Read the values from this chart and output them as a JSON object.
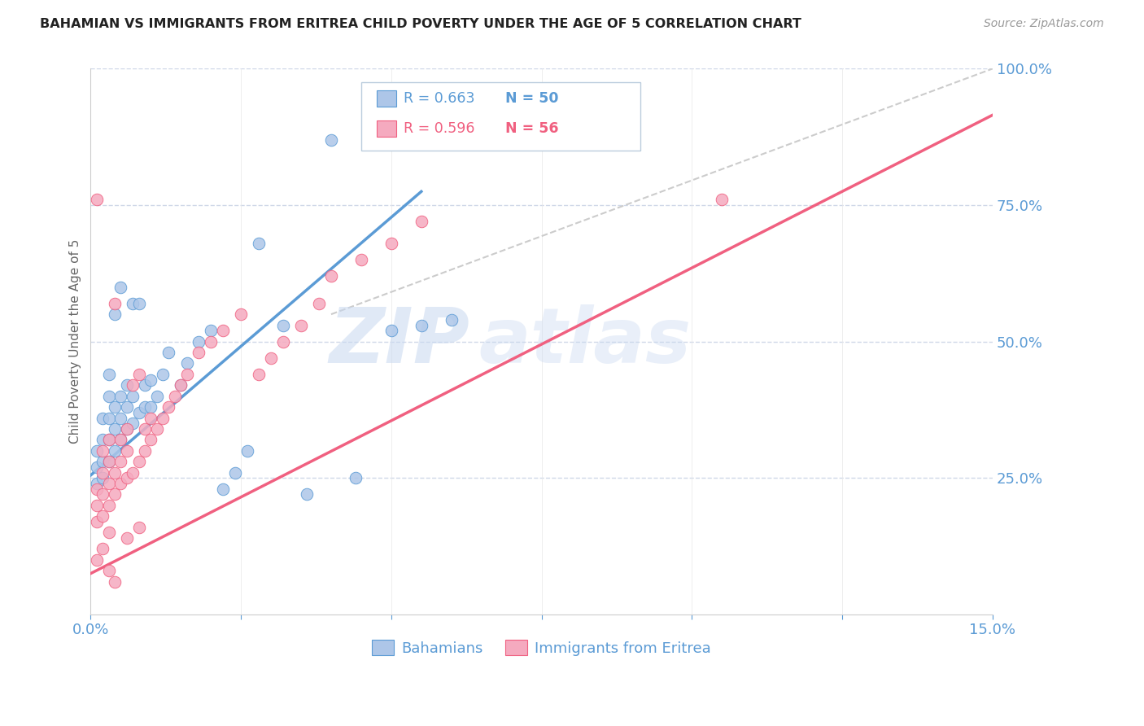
{
  "title": "BAHAMIAN VS IMMIGRANTS FROM ERITREA CHILD POVERTY UNDER THE AGE OF 5 CORRELATION CHART",
  "source": "Source: ZipAtlas.com",
  "ylabel": "Child Poverty Under the Age of 5",
  "xmin": 0.0,
  "xmax": 0.15,
  "ymin": 0.0,
  "ymax": 1.0,
  "xticks": [
    0.0,
    0.025,
    0.05,
    0.075,
    0.1,
    0.125,
    0.15
  ],
  "yticks": [
    0.0,
    0.25,
    0.5,
    0.75,
    1.0
  ],
  "blue_R": 0.663,
  "blue_N": 50,
  "pink_R": 0.596,
  "pink_N": 56,
  "blue_color": "#adc6e8",
  "pink_color": "#f5aabf",
  "blue_line_color": "#5b9bd5",
  "pink_line_color": "#f06080",
  "axis_color": "#5b9bd5",
  "grid_color": "#d0d8e8",
  "background_color": "#ffffff",
  "blue_scatter_x": [
    0.001,
    0.001,
    0.001,
    0.002,
    0.002,
    0.002,
    0.002,
    0.003,
    0.003,
    0.003,
    0.003,
    0.003,
    0.004,
    0.004,
    0.004,
    0.004,
    0.005,
    0.005,
    0.005,
    0.005,
    0.006,
    0.006,
    0.006,
    0.007,
    0.007,
    0.007,
    0.008,
    0.008,
    0.009,
    0.009,
    0.01,
    0.01,
    0.011,
    0.012,
    0.013,
    0.015,
    0.016,
    0.018,
    0.02,
    0.022,
    0.024,
    0.026,
    0.028,
    0.032,
    0.036,
    0.04,
    0.044,
    0.05,
    0.055,
    0.06
  ],
  "blue_scatter_y": [
    0.24,
    0.27,
    0.3,
    0.25,
    0.28,
    0.32,
    0.36,
    0.28,
    0.32,
    0.36,
    0.4,
    0.44,
    0.3,
    0.34,
    0.38,
    0.55,
    0.32,
    0.36,
    0.4,
    0.6,
    0.34,
    0.38,
    0.42,
    0.35,
    0.4,
    0.57,
    0.37,
    0.57,
    0.38,
    0.42,
    0.38,
    0.43,
    0.4,
    0.44,
    0.48,
    0.42,
    0.46,
    0.5,
    0.52,
    0.23,
    0.26,
    0.3,
    0.68,
    0.53,
    0.22,
    0.87,
    0.25,
    0.52,
    0.53,
    0.54
  ],
  "pink_scatter_x": [
    0.001,
    0.001,
    0.001,
    0.001,
    0.002,
    0.002,
    0.002,
    0.002,
    0.003,
    0.003,
    0.003,
    0.003,
    0.003,
    0.004,
    0.004,
    0.004,
    0.005,
    0.005,
    0.005,
    0.006,
    0.006,
    0.006,
    0.007,
    0.007,
    0.008,
    0.008,
    0.009,
    0.009,
    0.01,
    0.01,
    0.011,
    0.012,
    0.013,
    0.014,
    0.015,
    0.016,
    0.018,
    0.02,
    0.022,
    0.025,
    0.028,
    0.03,
    0.032,
    0.035,
    0.038,
    0.04,
    0.045,
    0.05,
    0.055,
    0.105,
    0.001,
    0.002,
    0.003,
    0.004,
    0.006,
    0.008
  ],
  "pink_scatter_y": [
    0.17,
    0.2,
    0.23,
    0.76,
    0.18,
    0.22,
    0.26,
    0.3,
    0.2,
    0.24,
    0.28,
    0.32,
    0.15,
    0.22,
    0.26,
    0.57,
    0.24,
    0.28,
    0.32,
    0.25,
    0.3,
    0.34,
    0.26,
    0.42,
    0.28,
    0.44,
    0.3,
    0.34,
    0.32,
    0.36,
    0.34,
    0.36,
    0.38,
    0.4,
    0.42,
    0.44,
    0.48,
    0.5,
    0.52,
    0.55,
    0.44,
    0.47,
    0.5,
    0.53,
    0.57,
    0.62,
    0.65,
    0.68,
    0.72,
    0.76,
    0.1,
    0.12,
    0.08,
    0.06,
    0.14,
    0.16
  ],
  "blue_line_x": [
    0.0,
    0.055
  ],
  "blue_line_y": [
    0.255,
    0.775
  ],
  "pink_line_x": [
    0.0,
    0.15
  ],
  "pink_line_y": [
    0.075,
    0.915
  ],
  "diag_line_x": [
    0.04,
    0.15
  ],
  "diag_line_y": [
    0.55,
    1.0
  ],
  "watermark_zip": "ZIP",
  "watermark_atlas": "atlas",
  "legend_label_blue": "Bahamians",
  "legend_label_pink": "Immigrants from Eritrea"
}
